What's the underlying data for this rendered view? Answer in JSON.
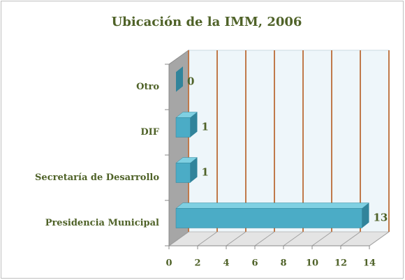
{
  "chart_data": {
    "type": "bar",
    "orientation": "horizontal",
    "title": "Ubicación de la IMM, 2006",
    "categories": [
      "Otro",
      "DIF",
      "Secretaría de Desarrollo",
      "Presidencia Municipal"
    ],
    "values": [
      0,
      1,
      1,
      13
    ],
    "color": "#4bacc6",
    "xlim": [
      0,
      14
    ],
    "xticks": [
      0,
      2,
      4,
      6,
      8,
      10,
      12,
      14
    ],
    "grid": true
  }
}
